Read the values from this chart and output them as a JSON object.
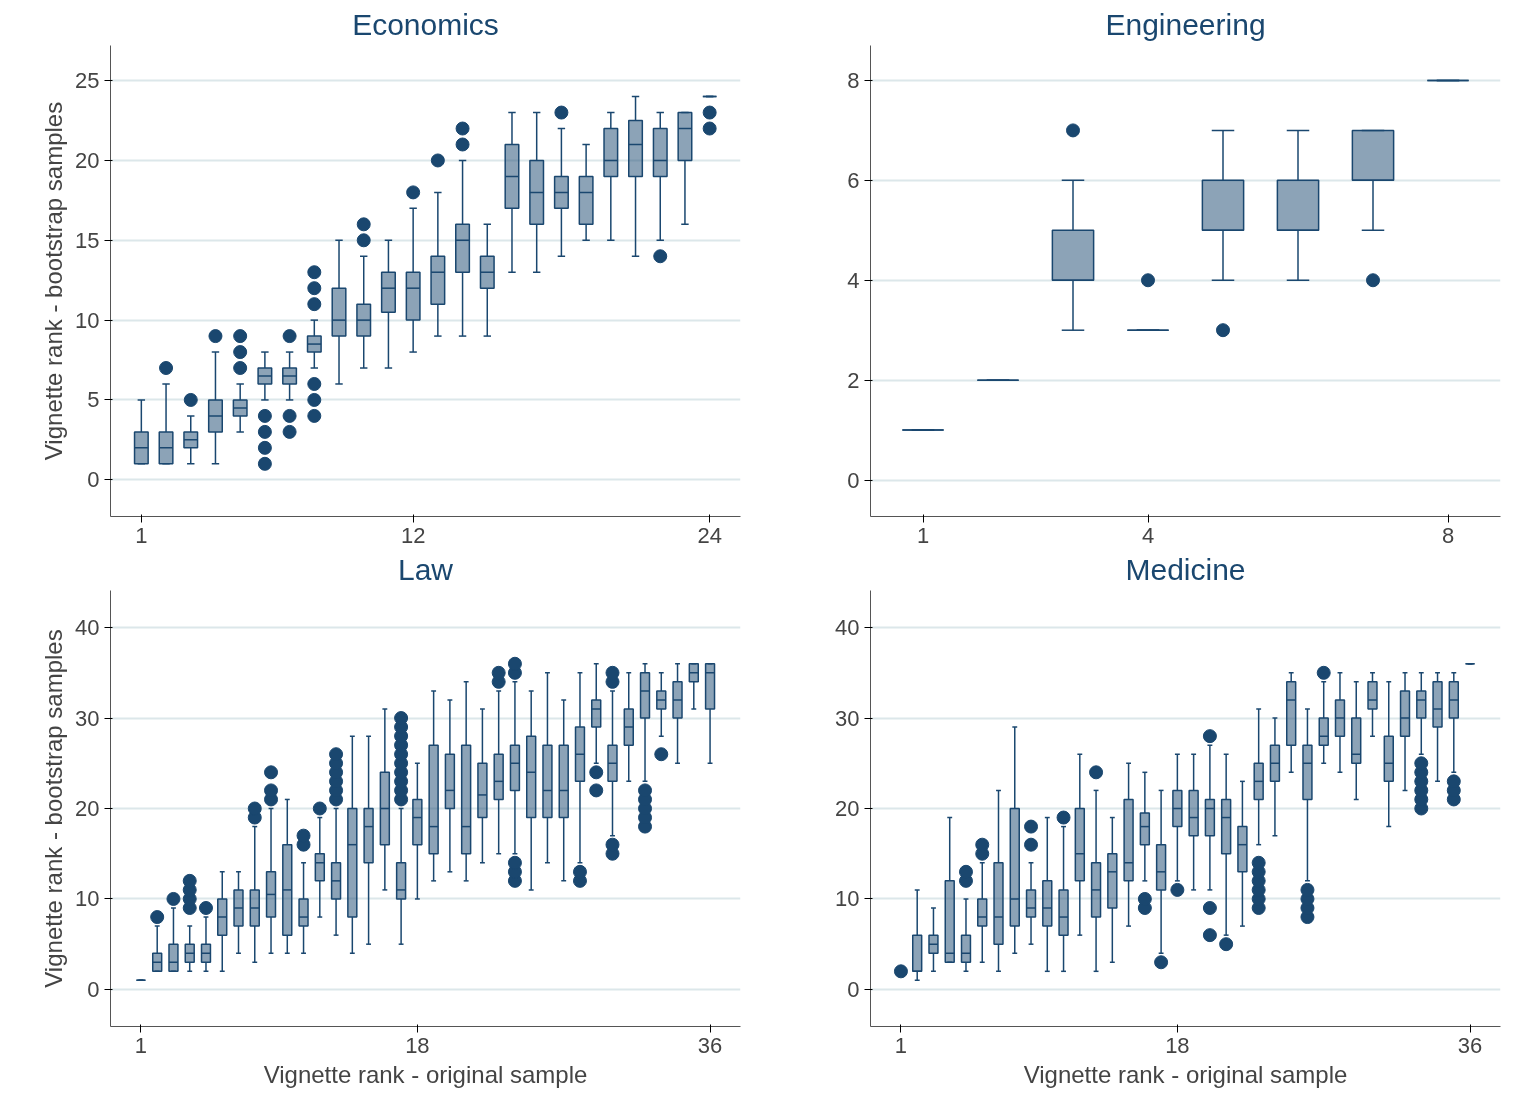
{
  "chart_data": [
    {
      "type": "box",
      "title": "Economics",
      "ylabel": "Vignette rank - bootstrap samples",
      "color": "#1a476f",
      "grid": "y",
      "ylim": [
        -2.3,
        27.2
      ],
      "yticks": [
        0,
        5,
        10,
        15,
        20,
        25
      ],
      "categories": [
        "1",
        null,
        null,
        null,
        null,
        null,
        null,
        null,
        null,
        null,
        null,
        "12",
        null,
        null,
        null,
        null,
        null,
        null,
        null,
        null,
        null,
        null,
        null,
        "24"
      ],
      "boxes": [
        {
          "low": 1,
          "q1": 1,
          "median": 2,
          "q3": 3,
          "high": 5
        },
        {
          "low": 1,
          "q1": 1,
          "median": 2,
          "q3": 3,
          "high": 6,
          "outliers": [
            7
          ]
        },
        {
          "low": 1,
          "q1": 2,
          "median": 2.5,
          "q3": 3,
          "high": 4,
          "outliers": [
            5
          ]
        },
        {
          "low": 1,
          "q1": 3,
          "median": 4,
          "q3": 5,
          "high": 8,
          "outliers": [
            9
          ]
        },
        {
          "low": 3,
          "q1": 4,
          "median": 4.5,
          "q3": 5,
          "high": 6,
          "outliers": [
            7,
            8,
            9
          ]
        },
        {
          "low": 5,
          "q1": 6,
          "median": 6.5,
          "q3": 7,
          "high": 8,
          "outliers": [
            1,
            2,
            3,
            4
          ]
        },
        {
          "low": 5,
          "q1": 6,
          "median": 6.5,
          "q3": 7,
          "high": 8,
          "outliers": [
            3,
            4,
            9
          ]
        },
        {
          "low": 7,
          "q1": 8,
          "median": 8.5,
          "q3": 9,
          "high": 10,
          "outliers": [
            4,
            5,
            6,
            11,
            12,
            13
          ]
        },
        {
          "low": 6,
          "q1": 9,
          "median": 10,
          "q3": 12,
          "high": 15
        },
        {
          "low": 7,
          "q1": 9,
          "median": 10,
          "q3": 11,
          "high": 14,
          "outliers": [
            15,
            16
          ]
        },
        {
          "low": 7,
          "q1": 10.5,
          "median": 12,
          "q3": 13,
          "high": 15
        },
        {
          "low": 8,
          "q1": 10,
          "median": 12,
          "q3": 13,
          "high": 17,
          "outliers": [
            18
          ]
        },
        {
          "low": 9,
          "q1": 11,
          "median": 13,
          "q3": 14,
          "high": 18,
          "outliers": [
            20
          ]
        },
        {
          "low": 9,
          "q1": 13,
          "median": 15,
          "q3": 16,
          "high": 20,
          "outliers": [
            21,
            22
          ]
        },
        {
          "low": 9,
          "q1": 12,
          "median": 13,
          "q3": 14,
          "high": 16
        },
        {
          "low": 13,
          "q1": 17,
          "median": 19,
          "q3": 21,
          "high": 23
        },
        {
          "low": 13,
          "q1": 16,
          "median": 18,
          "q3": 20,
          "high": 23
        },
        {
          "low": 14,
          "q1": 17,
          "median": 18,
          "q3": 19,
          "high": 22,
          "outliers": [
            23
          ]
        },
        {
          "low": 15,
          "q1": 16,
          "median": 18,
          "q3": 19,
          "high": 21
        },
        {
          "low": 15,
          "q1": 19,
          "median": 20,
          "q3": 22,
          "high": 23
        },
        {
          "low": 14,
          "q1": 19,
          "median": 21,
          "q3": 22.5,
          "high": 24
        },
        {
          "low": 15,
          "q1": 19,
          "median": 20,
          "q3": 22,
          "high": 23,
          "outliers": [
            14
          ]
        },
        {
          "low": 16,
          "q1": 20,
          "median": 22,
          "q3": 23,
          "high": 23
        },
        {
          "low": 24,
          "q1": 24,
          "median": 24,
          "q3": 24,
          "high": 24,
          "outliers": [
            22,
            23
          ]
        }
      ]
    },
    {
      "type": "box",
      "title": "Engineering",
      "color": "#1a476f",
      "grid": "y",
      "ylim": [
        -0.73,
        8.7
      ],
      "yticks": [
        0,
        2,
        4,
        6,
        8
      ],
      "categories": [
        "1",
        null,
        null,
        "4",
        null,
        null,
        null,
        "8"
      ],
      "boxes": [
        {
          "low": 1,
          "q1": 1,
          "median": 1,
          "q3": 1,
          "high": 1
        },
        {
          "low": 2,
          "q1": 2,
          "median": 2,
          "q3": 2,
          "high": 2
        },
        {
          "low": 3,
          "q1": 4,
          "median": 4,
          "q3": 5,
          "high": 6,
          "outliers": [
            7
          ]
        },
        {
          "low": 3,
          "q1": 3,
          "median": 3,
          "q3": 3,
          "high": 3,
          "outliers": [
            4
          ]
        },
        {
          "low": 4,
          "q1": 5,
          "median": 5,
          "q3": 6,
          "high": 7,
          "outliers": [
            3
          ]
        },
        {
          "low": 4,
          "q1": 5,
          "median": 5,
          "q3": 6,
          "high": 7
        },
        {
          "low": 5,
          "q1": 6,
          "median": 6,
          "q3": 7,
          "high": 7,
          "outliers": [
            4
          ]
        },
        {
          "low": 8,
          "q1": 8,
          "median": 8,
          "q3": 8,
          "high": 8
        }
      ]
    },
    {
      "type": "box",
      "title": "Law",
      "xlabel": "Vignette rank - original sample",
      "ylabel": "Vignette rank - bootstrap samples",
      "color": "#1a476f",
      "grid": "y",
      "ylim": [
        -4.1,
        44.1
      ],
      "yticks": [
        0,
        10,
        20,
        30,
        40
      ],
      "categories": [
        "1",
        null,
        null,
        null,
        null,
        null,
        null,
        null,
        null,
        null,
        null,
        null,
        null,
        null,
        null,
        null,
        null,
        "18",
        null,
        null,
        null,
        null,
        null,
        null,
        null,
        null,
        null,
        null,
        null,
        null,
        null,
        null,
        null,
        null,
        null,
        "36"
      ],
      "boxes": [
        {
          "low": 1,
          "q1": 1,
          "median": 1,
          "q3": 1,
          "high": 1
        },
        {
          "low": 2,
          "q1": 2,
          "median": 3,
          "q3": 4,
          "high": 7,
          "outliers": [
            8
          ]
        },
        {
          "low": 2,
          "q1": 2,
          "median": 3,
          "q3": 5,
          "high": 9,
          "outliers": [
            10
          ]
        },
        {
          "low": 2,
          "q1": 3,
          "median": 4,
          "q3": 5,
          "high": 7,
          "outliers": [
            9,
            10,
            11,
            12
          ]
        },
        {
          "low": 2,
          "q1": 3,
          "median": 4,
          "q3": 5,
          "high": 8,
          "outliers": [
            9
          ]
        },
        {
          "low": 2,
          "q1": 6,
          "median": 8,
          "q3": 10,
          "high": 13
        },
        {
          "low": 4,
          "q1": 7,
          "median": 9,
          "q3": 11,
          "high": 13
        },
        {
          "low": 3,
          "q1": 7,
          "median": 9,
          "q3": 11,
          "high": 18,
          "outliers": [
            19,
            20
          ]
        },
        {
          "low": 4,
          "q1": 8,
          "median": 10.5,
          "q3": 13,
          "high": 20,
          "outliers": [
            21,
            22,
            24
          ]
        },
        {
          "low": 4,
          "q1": 6,
          "median": 11,
          "q3": 16,
          "high": 21
        },
        {
          "low": 4,
          "q1": 7,
          "median": 8,
          "q3": 10,
          "high": 14,
          "outliers": [
            16,
            17
          ]
        },
        {
          "low": 8,
          "q1": 12,
          "median": 14,
          "q3": 15,
          "high": 19,
          "outliers": [
            20
          ]
        },
        {
          "low": 6,
          "q1": 10,
          "median": 12,
          "q3": 14,
          "high": 20,
          "outliers": [
            21,
            22,
            23,
            24,
            25,
            26
          ]
        },
        {
          "low": 4,
          "q1": 8,
          "median": 16,
          "q3": 20,
          "high": 28
        },
        {
          "low": 5,
          "q1": 14,
          "median": 18,
          "q3": 20,
          "high": 28
        },
        {
          "low": 11,
          "q1": 16,
          "median": 20,
          "q3": 24,
          "high": 31
        },
        {
          "low": 5,
          "q1": 10,
          "median": 11,
          "q3": 14,
          "high": 20,
          "outliers": [
            21,
            22,
            23,
            24,
            25,
            26,
            27,
            28,
            29,
            30
          ]
        },
        {
          "low": 10,
          "q1": 16,
          "median": 19,
          "q3": 21,
          "high": 25
        },
        {
          "low": 12,
          "q1": 15,
          "median": 18,
          "q3": 27,
          "high": 33
        },
        {
          "low": 13,
          "q1": 20,
          "median": 22,
          "q3": 26,
          "high": 32
        },
        {
          "low": 12,
          "q1": 15,
          "median": 18,
          "q3": 27,
          "high": 34
        },
        {
          "low": 14,
          "q1": 19,
          "median": 21.5,
          "q3": 25,
          "high": 31
        },
        {
          "low": 15,
          "q1": 21,
          "median": 23,
          "q3": 26,
          "high": 33,
          "outliers": [
            34,
            35
          ]
        },
        {
          "low": 15,
          "q1": 22,
          "median": 25,
          "q3": 27,
          "high": 34,
          "outliers": [
            12,
            13,
            14,
            35,
            36
          ]
        },
        {
          "low": 11,
          "q1": 19,
          "median": 24,
          "q3": 28,
          "high": 33
        },
        {
          "low": 14,
          "q1": 19,
          "median": 22,
          "q3": 27,
          "high": 35
        },
        {
          "low": 12,
          "q1": 19,
          "median": 22,
          "q3": 27,
          "high": 32
        },
        {
          "low": 14,
          "q1": 23,
          "median": 26,
          "q3": 29,
          "high": 35,
          "outliers": [
            12,
            13
          ]
        },
        {
          "low": 25,
          "q1": 29,
          "median": 31,
          "q3": 32,
          "high": 36,
          "outliers": [
            22,
            24
          ]
        },
        {
          "low": 17,
          "q1": 23,
          "median": 25,
          "q3": 27,
          "high": 33,
          "outliers": [
            15,
            16,
            34,
            35
          ]
        },
        {
          "low": 23,
          "q1": 27,
          "median": 29,
          "q3": 31,
          "high": 35
        },
        {
          "low": 23,
          "q1": 30,
          "median": 33,
          "q3": 35,
          "high": 36,
          "outliers": [
            18,
            19,
            20,
            21,
            22
          ]
        },
        {
          "low": 28,
          "q1": 31,
          "median": 32,
          "q3": 33,
          "high": 35,
          "outliers": [
            26
          ]
        },
        {
          "low": 25,
          "q1": 30,
          "median": 32,
          "q3": 34,
          "high": 36
        },
        {
          "low": 31,
          "q1": 34,
          "median": 35,
          "q3": 36,
          "high": 36
        },
        {
          "low": 25,
          "q1": 31,
          "median": 35,
          "q3": 36,
          "high": 36
        }
      ]
    },
    {
      "type": "box",
      "title": "Medicine",
      "xlabel": "Vignette rank - original sample",
      "color": "#1a476f",
      "grid": "y",
      "ylim": [
        -4.1,
        44.1
      ],
      "yticks": [
        0,
        10,
        20,
        30,
        40
      ],
      "categories": [
        "1",
        null,
        null,
        null,
        null,
        null,
        null,
        null,
        null,
        null,
        null,
        null,
        null,
        null,
        null,
        null,
        null,
        "18",
        null,
        null,
        null,
        null,
        null,
        null,
        null,
        null,
        null,
        null,
        null,
        null,
        null,
        null,
        null,
        null,
        null,
        "36"
      ],
      "boxes": [
        {
          "low": 2,
          "q1": 2,
          "median": 2,
          "q3": 2,
          "high": 2,
          "outliers": [
            2
          ]
        },
        {
          "low": 1,
          "q1": 2,
          "median": 2,
          "q3": 6,
          "high": 11
        },
        {
          "low": 2,
          "q1": 4,
          "median": 5,
          "q3": 6,
          "high": 9
        },
        {
          "low": 3,
          "q1": 3,
          "median": 4,
          "q3": 12,
          "high": 19
        },
        {
          "low": 2,
          "q1": 3,
          "median": 4,
          "q3": 6,
          "high": 10,
          "outliers": [
            12,
            13
          ]
        },
        {
          "low": 3,
          "q1": 7,
          "median": 8,
          "q3": 10,
          "high": 14,
          "outliers": [
            15,
            16
          ]
        },
        {
          "low": 2,
          "q1": 5,
          "median": 8,
          "q3": 14,
          "high": 22
        },
        {
          "low": 4,
          "q1": 7,
          "median": 10,
          "q3": 20,
          "high": 29
        },
        {
          "low": 5,
          "q1": 8,
          "median": 9,
          "q3": 11,
          "high": 14,
          "outliers": [
            16,
            18
          ]
        },
        {
          "low": 2,
          "q1": 7,
          "median": 9,
          "q3": 12,
          "high": 19
        },
        {
          "low": 2,
          "q1": 6,
          "median": 8,
          "q3": 11,
          "high": 18,
          "outliers": [
            19
          ]
        },
        {
          "low": 6,
          "q1": 12,
          "median": 15,
          "q3": 20,
          "high": 26
        },
        {
          "low": 2,
          "q1": 8,
          "median": 11,
          "q3": 14,
          "high": 22,
          "outliers": [
            24
          ]
        },
        {
          "low": 3,
          "q1": 9,
          "median": 13,
          "q3": 15,
          "high": 19
        },
        {
          "low": 7,
          "q1": 12,
          "median": 14,
          "q3": 21,
          "high": 25
        },
        {
          "low": 12,
          "q1": 16,
          "median": 18,
          "q3": 19.5,
          "high": 24,
          "outliers": [
            9,
            10
          ]
        },
        {
          "low": 4,
          "q1": 11,
          "median": 13,
          "q3": 16,
          "high": 22,
          "outliers": [
            3
          ]
        },
        {
          "low": 12,
          "q1": 18,
          "median": 20,
          "q3": 22,
          "high": 26,
          "outliers": [
            11
          ]
        },
        {
          "low": 11,
          "q1": 17,
          "median": 19,
          "q3": 22,
          "high": 26
        },
        {
          "low": 11,
          "q1": 17,
          "median": 20,
          "q3": 21,
          "high": 27,
          "outliers": [
            6,
            9,
            28
          ]
        },
        {
          "low": 6,
          "q1": 15,
          "median": 19,
          "q3": 21,
          "high": 26,
          "outliers": [
            5
          ]
        },
        {
          "low": 7,
          "q1": 13,
          "median": 16,
          "q3": 18,
          "high": 23
        },
        {
          "low": 16,
          "q1": 21,
          "median": 23,
          "q3": 25,
          "high": 31,
          "outliers": [
            9,
            10,
            11,
            12,
            13,
            14
          ]
        },
        {
          "low": 17,
          "q1": 23,
          "median": 25,
          "q3": 27,
          "high": 30
        },
        {
          "low": 24,
          "q1": 27,
          "median": 32,
          "q3": 34,
          "high": 35
        },
        {
          "low": 12,
          "q1": 21,
          "median": 25,
          "q3": 27,
          "high": 31,
          "outliers": [
            8,
            9,
            10,
            11
          ]
        },
        {
          "low": 25,
          "q1": 27,
          "median": 28,
          "q3": 30,
          "high": 34,
          "outliers": [
            35
          ]
        },
        {
          "low": 24,
          "q1": 28,
          "median": 30,
          "q3": 32,
          "high": 35
        },
        {
          "low": 21,
          "q1": 25,
          "median": 26,
          "q3": 30,
          "high": 34
        },
        {
          "low": 28,
          "q1": 31,
          "median": 32,
          "q3": 34,
          "high": 35
        },
        {
          "low": 18,
          "q1": 23,
          "median": 25,
          "q3": 28,
          "high": 34
        },
        {
          "low": 22,
          "q1": 28,
          "median": 30,
          "q3": 33,
          "high": 35
        },
        {
          "low": 26,
          "q1": 30,
          "median": 32,
          "q3": 33,
          "high": 35,
          "outliers": [
            20,
            21,
            22,
            23,
            24,
            25
          ]
        },
        {
          "low": 23,
          "q1": 29,
          "median": 31,
          "q3": 34,
          "high": 35
        },
        {
          "low": 24,
          "q1": 30,
          "median": 32,
          "q3": 34,
          "high": 35,
          "outliers": [
            21,
            22,
            23
          ]
        },
        {
          "low": 36,
          "q1": 36,
          "median": 36,
          "q3": 36,
          "high": 36
        }
      ]
    }
  ]
}
